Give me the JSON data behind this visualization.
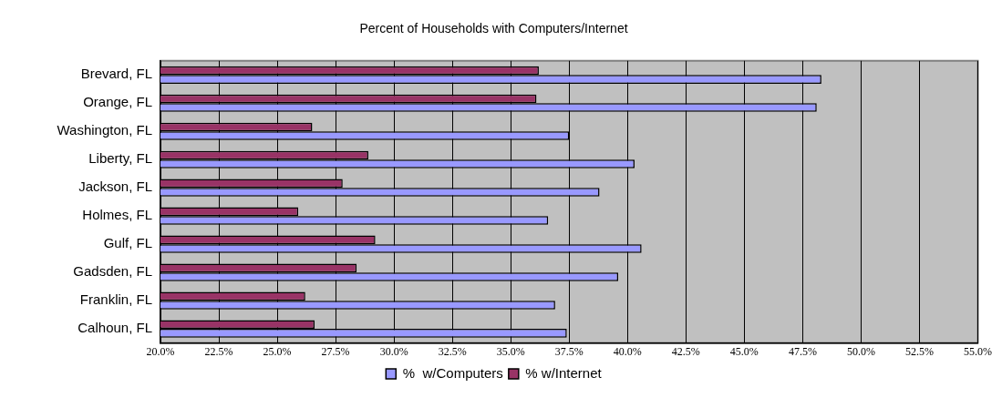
{
  "chart_data": {
    "type": "bar",
    "orientation": "horizontal",
    "title": "Percent of Households with Computers/Internet",
    "categories": [
      "Brevard, FL",
      "Orange, FL",
      "Washington, FL",
      "Liberty, FL",
      "Jackson, FL",
      "Holmes, FL",
      "Gulf, FL",
      "Gadsden, FL",
      "Franklin, FL",
      "Calhoun, FL"
    ],
    "series": [
      {
        "name": "%  w/Computers",
        "color": "#9999ff",
        "values": [
          48.3,
          48.1,
          37.5,
          40.3,
          38.8,
          36.6,
          40.6,
          39.6,
          36.9,
          37.4
        ]
      },
      {
        "name": "% w/Internet",
        "color": "#993366",
        "values": [
          36.2,
          36.1,
          26.5,
          28.9,
          27.8,
          25.9,
          29.2,
          28.4,
          26.2,
          26.6
        ]
      }
    ],
    "xlim": [
      20,
      55
    ],
    "xticks": [
      {
        "value": 20,
        "label": "20.0%"
      },
      {
        "value": 22.5,
        "label": "22.5%"
      },
      {
        "value": 25,
        "label": "25.0%"
      },
      {
        "value": 27.5,
        "label": "27.5%"
      },
      {
        "value": 30,
        "label": "30.0%"
      },
      {
        "value": 32.5,
        "label": "32.5%"
      },
      {
        "value": 35,
        "label": "35.0%"
      },
      {
        "value": 37.5,
        "label": "37.5%"
      },
      {
        "value": 40,
        "label": "40.0%"
      },
      {
        "value": 42.5,
        "label": "42.5%"
      },
      {
        "value": 45,
        "label": "45.0%"
      },
      {
        "value": 47.5,
        "label": "47.5%"
      },
      {
        "value": 50,
        "label": "50.0%"
      },
      {
        "value": 52.5,
        "label": "52.5%"
      },
      {
        "value": 55,
        "label": "55.0%"
      }
    ],
    "grid": "x",
    "legend": "bottom"
  }
}
